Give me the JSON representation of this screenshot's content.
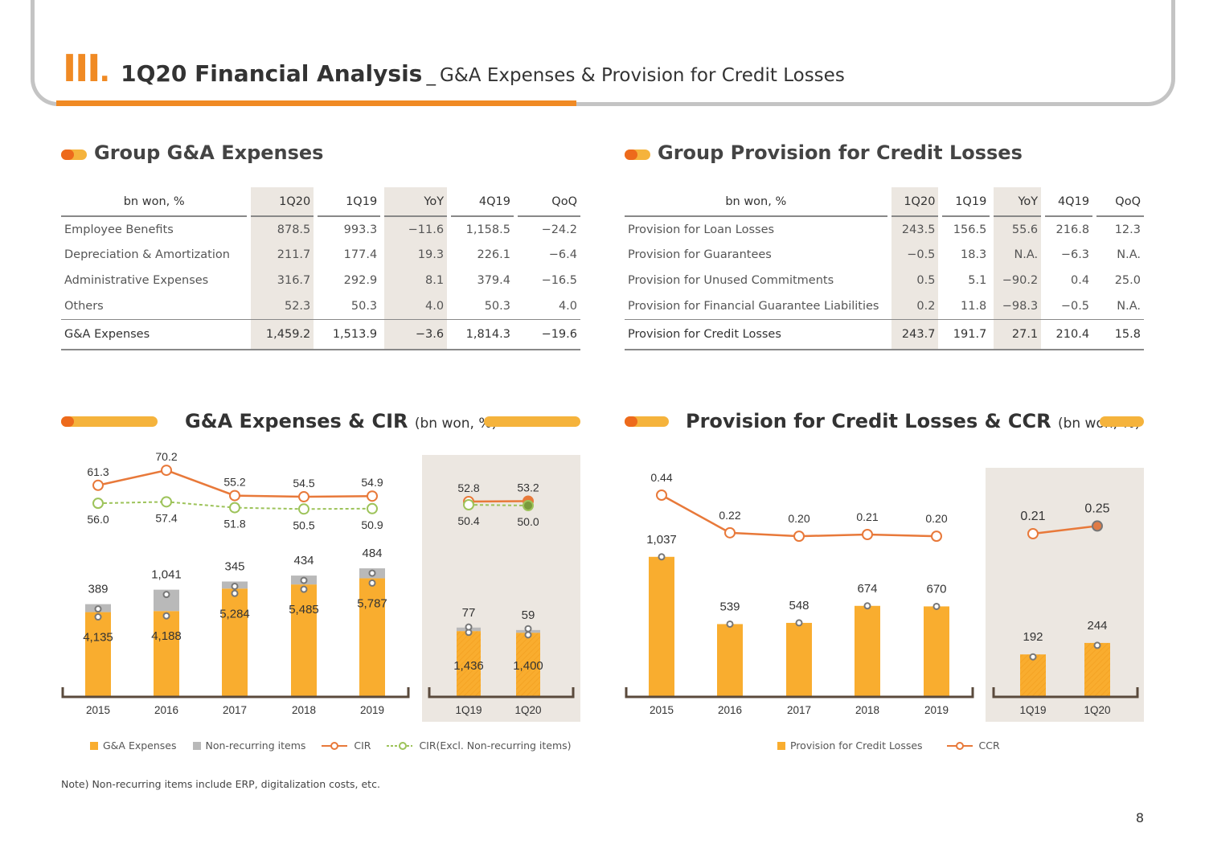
{
  "header": {
    "roman": "III",
    "title": "1Q20 Financial Analysis",
    "dash": "_",
    "subtitle": "G&A Expenses & Provision for Credit Losses"
  },
  "ga_table": {
    "title": "Group G&A Expenses",
    "headers": [
      "bn won, %",
      "1Q20",
      "1Q19",
      "YoY",
      "4Q19",
      "QoQ"
    ],
    "rows": [
      [
        "Employee Benefits",
        "878.5",
        "993.3",
        "-11.6",
        "1,158.5",
        "-24.2"
      ],
      [
        "Depreciation & Amortization",
        "211.7",
        "177.4",
        "19.3",
        "226.1",
        "-6.4"
      ],
      [
        "Administrative Expenses",
        "316.7",
        "292.9",
        "8.1",
        "379.4",
        "-16.5"
      ],
      [
        "Others",
        "52.3",
        "50.3",
        "4.0",
        "50.3",
        "4.0"
      ]
    ],
    "total": [
      "G&A Expenses",
      "1,459.2",
      "1,513.9",
      "-3.6",
      "1,814.3",
      "-19.6"
    ]
  },
  "prov_table": {
    "title": "Group Provision for Credit Losses",
    "headers": [
      "bn won, %",
      "1Q20",
      "1Q19",
      "YoY",
      "4Q19",
      "QoQ"
    ],
    "rows": [
      [
        "Provision for Loan Losses",
        "243.5",
        "156.5",
        "55.6",
        "216.8",
        "12.3"
      ],
      [
        "Provision for Guarantees",
        "-0.5",
        "18.3",
        "N.A.",
        "-6.3",
        "N.A."
      ],
      [
        "Provision for Unused Commitments",
        "0.5",
        "5.1",
        "-90.2",
        "0.4",
        "25.0"
      ],
      [
        "Provision for Financial Guarantee Liabilities",
        "0.2",
        "11.8",
        "-98.3",
        "-0.5",
        "N.A."
      ]
    ],
    "total": [
      "Provision for Credit Losses",
      "243.7",
      "191.7",
      "27.1",
      "210.4",
      "15.8"
    ]
  },
  "chart_data": [
    {
      "type": "bar",
      "title": "G&A Expenses & CIR",
      "unit": "(bn won, %)",
      "categories": [
        "2015",
        "2016",
        "2017",
        "2018",
        "2019",
        "1Q19",
        "1Q20"
      ],
      "series": [
        {
          "name": "G&A Expenses",
          "values": [
            4135,
            4188,
            5284,
            5485,
            5787,
            1436,
            1400
          ],
          "labels": [
            "4,135",
            "4,188",
            "5,284",
            "5,485",
            "5,787",
            "1,436",
            "1,400"
          ]
        },
        {
          "name": "Non-recurring items",
          "values": [
            389,
            1041,
            345,
            434,
            484,
            77,
            59
          ],
          "labels": [
            "389",
            "1,041",
            "345",
            "434",
            "484",
            "77",
            "59"
          ]
        },
        {
          "name": "CIR",
          "values": [
            61.3,
            70.2,
            55.2,
            54.5,
            54.9,
            52.8,
            53.2
          ],
          "labels": [
            "61.3",
            "70.2",
            "55.2",
            "54.5",
            "54.9",
            "52.8",
            "53.2"
          ]
        },
        {
          "name": "CIR(Excl. Non-recurring items)",
          "values": [
            56.0,
            57.4,
            51.8,
            50.5,
            50.9,
            50.4,
            50.0
          ],
          "labels": [
            "56.0",
            "57.4",
            "51.8",
            "50.5",
            "50.9",
            "50.4",
            "50.0"
          ]
        }
      ],
      "colors": {
        "bar": "#f9ad2f",
        "nonrec": "#b9b9b9",
        "cir": "#e8793a",
        "cir_excl": "#9dc35a",
        "panel": "#ece7e1"
      }
    },
    {
      "type": "bar",
      "title": "Provision for Credit Losses & CCR",
      "unit": "(bn won, %)",
      "categories": [
        "2015",
        "2016",
        "2017",
        "2018",
        "2019",
        "1Q19",
        "1Q20"
      ],
      "series": [
        {
          "name": "Provision for Credit Losses",
          "values": [
            1037,
            539,
            548,
            674,
            670,
            192,
            244
          ],
          "labels": [
            "1,037",
            "539",
            "548",
            "674",
            "670",
            "192",
            "244"
          ]
        },
        {
          "name": "CCR",
          "values": [
            0.44,
            0.22,
            0.2,
            0.21,
            0.2,
            0.21,
            0.25
          ],
          "labels": [
            "0.44",
            "0.22",
            "0.20",
            "0.21",
            "0.20",
            "0.21",
            "0.25"
          ]
        }
      ],
      "colors": {
        "bar": "#f9ad2f",
        "ccr": "#e8793a",
        "panel": "#ece7e1"
      }
    }
  ],
  "note": "Note) Non-recurring items include ERP, digitalization costs, etc.",
  "page_number": "8"
}
